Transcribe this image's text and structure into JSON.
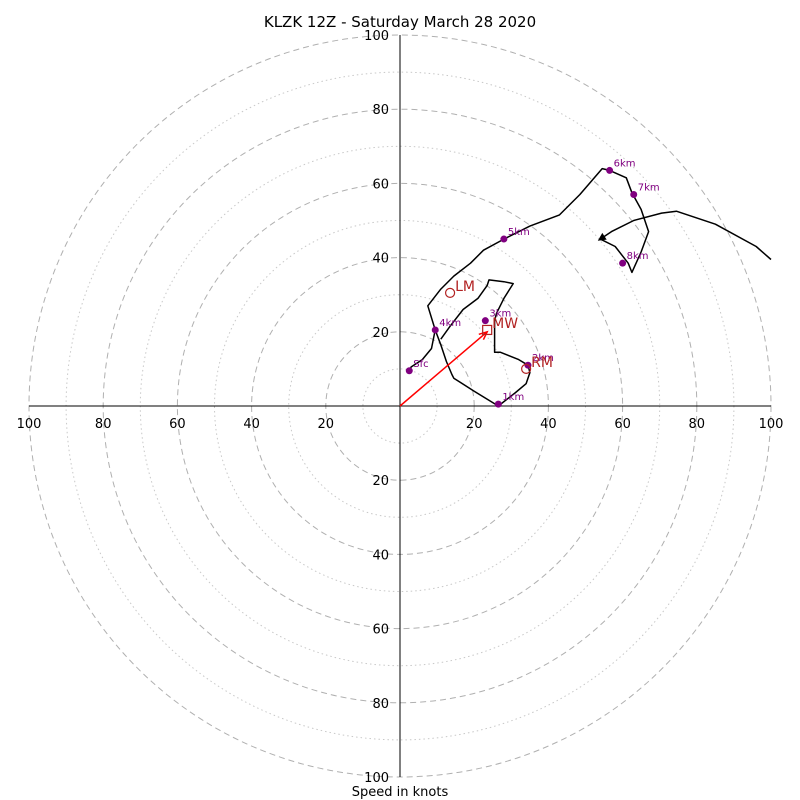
{
  "chart_data": {
    "type": "hodograph",
    "title": "KLZK 12Z - Saturday March 28 2020",
    "xlabel": "Speed in knots",
    "axis_range": [
      -100,
      100
    ],
    "ring_major": [
      20,
      40,
      60,
      80,
      100
    ],
    "ring_minor": [
      10,
      30,
      50,
      70,
      90
    ],
    "tick_values": [
      100,
      80,
      60,
      40,
      20
    ],
    "wind_trace": [
      [
        2.5,
        9.5
      ],
      [
        3,
        10.5
      ],
      [
        6,
        12.5
      ],
      [
        8.5,
        15.5
      ],
      [
        9.5,
        20.5
      ],
      [
        7.5,
        27
      ],
      [
        11,
        31.5
      ],
      [
        14.5,
        35
      ],
      [
        19,
        38.5
      ],
      [
        22.5,
        42
      ],
      [
        28,
        45
      ],
      [
        35,
        48.5
      ],
      [
        43,
        51.5
      ],
      [
        48.5,
        57
      ],
      [
        54.5,
        64
      ],
      [
        56.5,
        63.5
      ],
      [
        61,
        61.5
      ],
      [
        62.5,
        57.5
      ],
      [
        65,
        53
      ],
      [
        67,
        47
      ],
      [
        65,
        41.5
      ],
      [
        62.5,
        36
      ],
      [
        61.5,
        38.5
      ],
      [
        58,
        43
      ],
      [
        54,
        45
      ],
      [
        57,
        47
      ],
      [
        63,
        50
      ],
      [
        70.5,
        52
      ],
      [
        74.5,
        52.5
      ],
      [
        85,
        49
      ],
      [
        96,
        43
      ],
      [
        100,
        39.5
      ]
    ],
    "low_trace": [
      [
        9.5,
        20.5
      ],
      [
        11,
        16.5
      ],
      [
        12.5,
        12
      ],
      [
        14,
        8.5
      ],
      [
        14.5,
        7.5
      ],
      [
        20,
        4
      ],
      [
        26.5,
        0
      ],
      [
        31,
        3.5
      ],
      [
        34,
        6
      ],
      [
        35,
        9
      ],
      [
        34.5,
        11
      ],
      [
        32,
        12.5
      ],
      [
        27,
        14.5
      ],
      [
        25.5,
        14.5
      ],
      [
        25.5,
        16.5
      ],
      [
        25.5,
        21
      ],
      [
        25.5,
        23
      ],
      [
        26,
        25
      ],
      [
        28,
        29
      ],
      [
        30.5,
        33
      ],
      [
        28,
        33.5
      ],
      [
        24,
        34
      ],
      [
        23.5,
        32.5
      ],
      [
        21,
        29
      ],
      [
        17,
        26
      ],
      [
        13.5,
        21.5
      ],
      [
        11,
        18
      ]
    ],
    "storm_motion_vector": {
      "from": [
        0,
        0
      ],
      "to": [
        23.5,
        20
      ]
    },
    "height_markers": [
      {
        "label": "Sfc",
        "u": 2.5,
        "v": 9.5
      },
      {
        "label": "1km",
        "u": 26.5,
        "v": 0.5
      },
      {
        "label": "2km",
        "u": 34.5,
        "v": 11
      },
      {
        "label": "3km",
        "u": 23,
        "v": 23
      },
      {
        "label": "4km",
        "u": 9.5,
        "v": 20.5
      },
      {
        "label": "5km",
        "u": 28,
        "v": 45
      },
      {
        "label": "6km",
        "u": 56.5,
        "v": 63.5
      },
      {
        "label": "7km",
        "u": 63,
        "v": 57
      },
      {
        "label": "8km",
        "u": 60,
        "v": 38.5
      }
    ],
    "motion_markers": [
      {
        "label": "LM",
        "shape": "circle",
        "u": 13.5,
        "v": 30.5
      },
      {
        "label": "MW",
        "shape": "square",
        "u": 23.5,
        "v": 20.5
      },
      {
        "label": "RM",
        "shape": "circle",
        "u": 34,
        "v": 10
      }
    ],
    "colors": {
      "trace": "#000000",
      "height_marker": "#800080",
      "motion_marker": "#b22222",
      "vector": "#ff0000",
      "ring": "#b0b0b0"
    }
  }
}
